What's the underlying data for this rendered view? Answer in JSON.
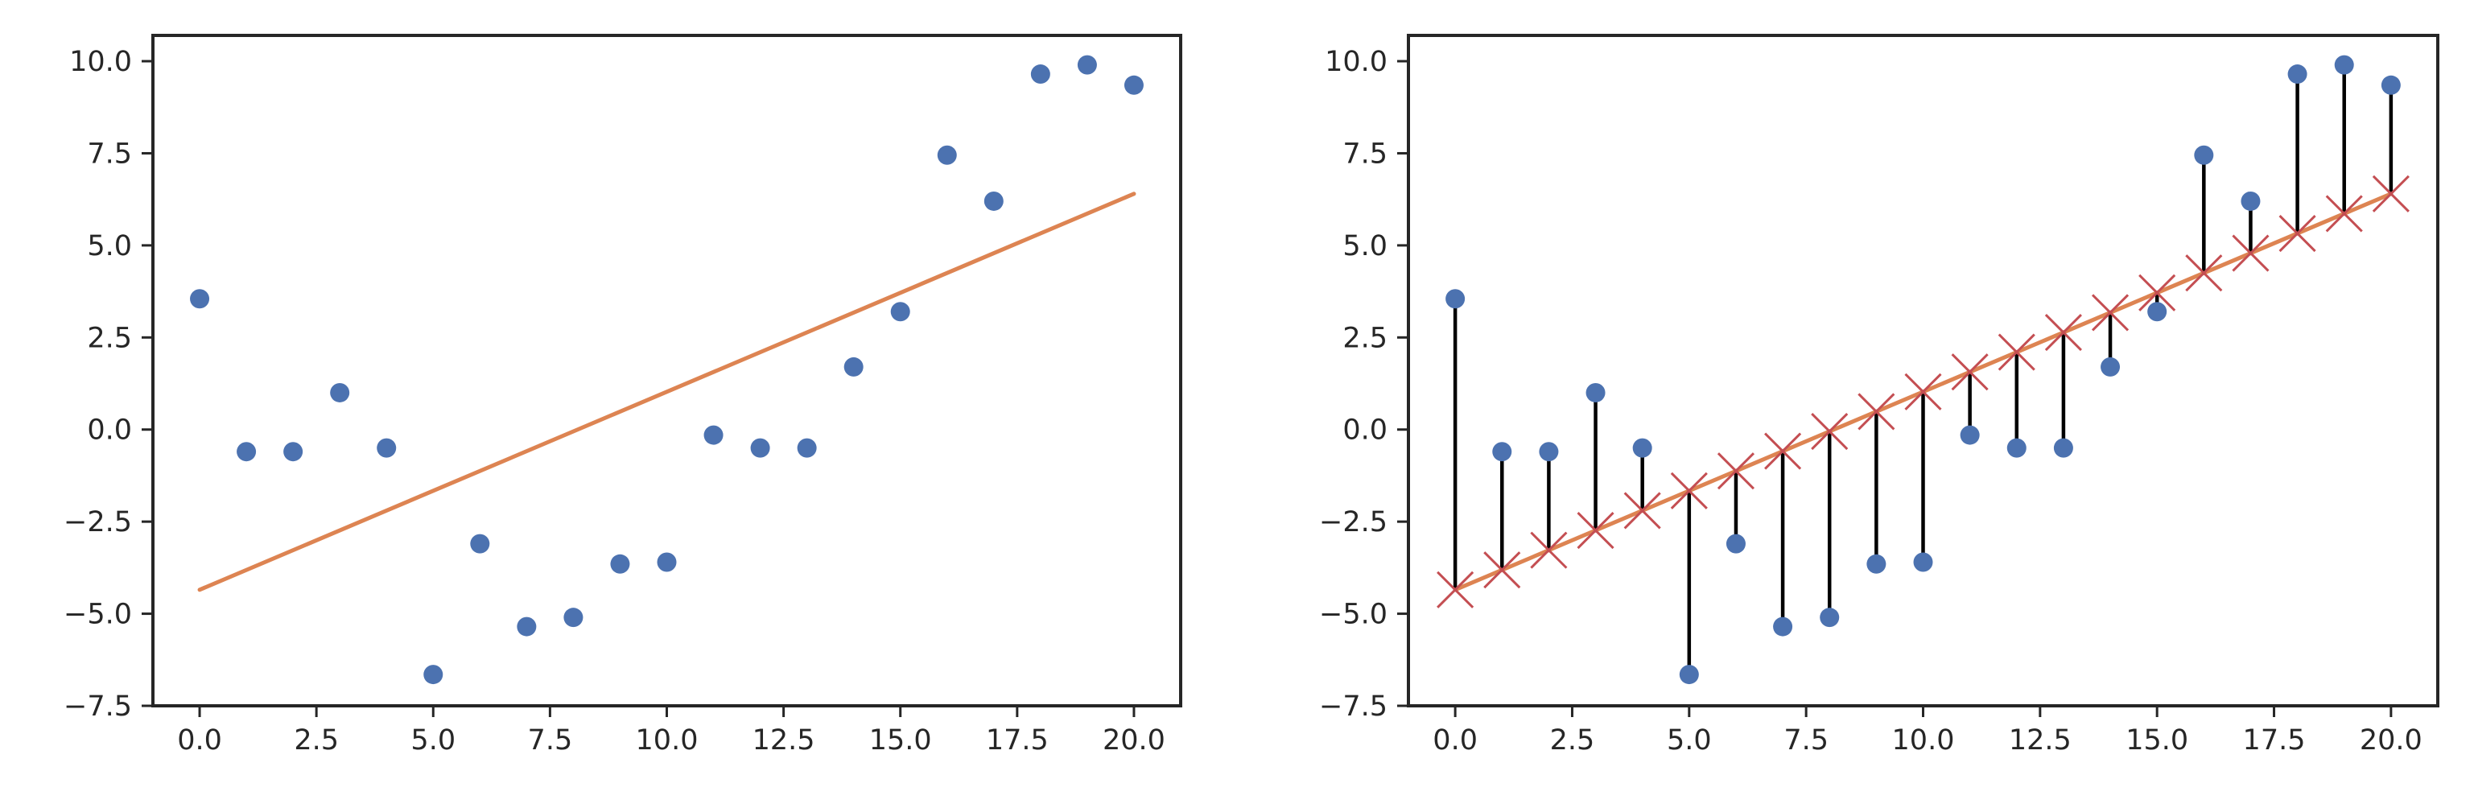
{
  "chart_data": [
    {
      "type": "scatter",
      "x": [
        0,
        1,
        2,
        3,
        4,
        5,
        6,
        7,
        8,
        9,
        10,
        11,
        12,
        13,
        14,
        15,
        16,
        17,
        18,
        19,
        20
      ],
      "y": [
        3.55,
        -0.6,
        -0.6,
        1.0,
        -0.5,
        -6.65,
        -3.1,
        -5.35,
        -5.1,
        -3.65,
        -3.6,
        -0.15,
        -0.5,
        -0.5,
        1.7,
        3.2,
        7.45,
        6.2,
        9.65,
        9.9,
        9.35
      ],
      "fit_line": {
        "x": [
          0,
          20
        ],
        "y": [
          -4.35,
          6.4
        ],
        "color": "#dd8452"
      },
      "point_color": "#4c72b0",
      "xlim": [
        -1,
        21
      ],
      "ylim": [
        -7.5,
        10.7
      ],
      "xticks": [
        0,
        2.5,
        5,
        7.5,
        10,
        12.5,
        15,
        17.5,
        20
      ],
      "xtick_labels": [
        "0.0",
        "2.5",
        "5.0",
        "7.5",
        "10.0",
        "12.5",
        "15.0",
        "17.5",
        "20.0"
      ],
      "yticks": [
        -7.5,
        -5,
        -2.5,
        0,
        2.5,
        5,
        7.5,
        10
      ],
      "ytick_labels": [
        "−7.5",
        "−5.0",
        "−2.5",
        "0.0",
        "2.5",
        "5.0",
        "7.5",
        "10.0"
      ],
      "grid": false,
      "title": "",
      "xlabel": "",
      "ylabel": ""
    },
    {
      "type": "scatter",
      "x": [
        0,
        1,
        2,
        3,
        4,
        5,
        6,
        7,
        8,
        9,
        10,
        11,
        12,
        13,
        14,
        15,
        16,
        17,
        18,
        19,
        20
      ],
      "y": [
        3.55,
        -0.6,
        -0.6,
        1.0,
        -0.5,
        -6.65,
        -3.1,
        -5.35,
        -5.1,
        -3.65,
        -3.6,
        -0.15,
        -0.5,
        -0.5,
        1.7,
        3.2,
        7.45,
        6.2,
        9.65,
        9.9,
        9.35
      ],
      "fit_line": {
        "x": [
          0,
          20
        ],
        "y": [
          -4.35,
          6.4
        ],
        "color": "#dd8452"
      },
      "point_color": "#4c72b0",
      "predicted_marker_color": "#c44e52",
      "residual_color": "#000000",
      "show_residuals": true,
      "xlim": [
        -1,
        21
      ],
      "ylim": [
        -7.5,
        10.7
      ],
      "xticks": [
        0,
        2.5,
        5,
        7.5,
        10,
        12.5,
        15,
        17.5,
        20
      ],
      "xtick_labels": [
        "0.0",
        "2.5",
        "5.0",
        "7.5",
        "10.0",
        "12.5",
        "15.0",
        "17.5",
        "20.0"
      ],
      "yticks": [
        -7.5,
        -5,
        -2.5,
        0,
        2.5,
        5,
        7.5,
        10
      ],
      "ytick_labels": [
        "−7.5",
        "−5.0",
        "−2.5",
        "0.0",
        "2.5",
        "5.0",
        "7.5",
        "10.0"
      ],
      "grid": false,
      "title": "",
      "xlabel": "",
      "ylabel": ""
    }
  ]
}
